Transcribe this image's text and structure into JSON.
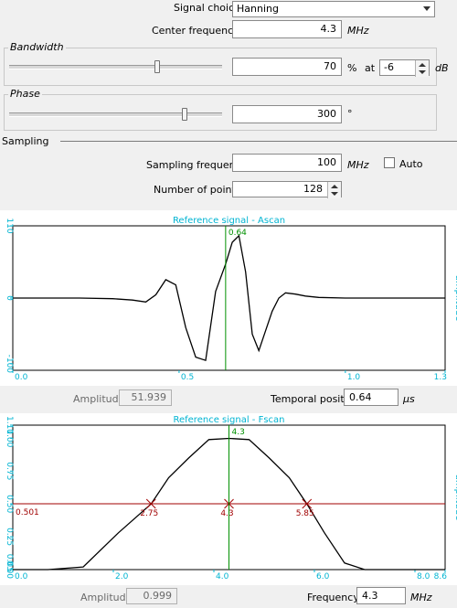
{
  "signal": {
    "choice_label": "Signal choice",
    "choice_value": "Hanning",
    "center_freq_label": "Center frequency",
    "center_freq_value": "4.3",
    "center_freq_unit": "MHz"
  },
  "bandwidth": {
    "title": "Bandwidth",
    "value": "70",
    "unit": "%",
    "at_label": "at",
    "at_value": "-6",
    "at_unit": "dB",
    "slider_level_pct": 70
  },
  "phase": {
    "title": "Phase",
    "value": "300",
    "unit": "°",
    "slider_level_deg": 300
  },
  "sampling": {
    "title": "Sampling",
    "freq_label": "Sampling frequency",
    "freq_value": "100",
    "freq_unit": "MHz",
    "auto_label": "Auto",
    "auto_checked": false,
    "points_label": "Number of points",
    "points_value": "128"
  },
  "ascan_readout": {
    "amplitude_label": "Amplitude",
    "amplitude_value": "51.939",
    "temporal_label": "Temporal position",
    "temporal_value": "0.64",
    "temporal_unit": "µs"
  },
  "fscan_readout": {
    "amplitude_label": "Amplitude",
    "amplitude_value": "0.999",
    "frequency_label": "Frequency",
    "frequency_value": "4.3",
    "frequency_unit": "MHz"
  },
  "colors": {
    "axis_cyan": "#00b4d2",
    "cursor_green": "#009000",
    "threshold_red": "#a00000",
    "curve": "#000000",
    "plot_bg": "#ffffff"
  },
  "chart_data": [
    {
      "type": "line",
      "title": "Reference signal - Ascan",
      "xlabel": "",
      "ylabel": "amplitude",
      "xlim": [
        0,
        1.3
      ],
      "ylim": [
        -110,
        110
      ],
      "x_ticks": [
        "0.0",
        "0.5",
        "1.0",
        "1.3"
      ],
      "y_ticks": [
        "110",
        "0",
        "-100"
      ],
      "cursor_x": 0.64,
      "cursor_label": "0.64",
      "series": [
        {
          "x": [
            0,
            0.1,
            0.2,
            0.3,
            0.36,
            0.4,
            0.43,
            0.46,
            0.49,
            0.52,
            0.55,
            0.58,
            0.61,
            0.64,
            0.66,
            0.68,
            0.7,
            0.72,
            0.74,
            0.76,
            0.78,
            0.8,
            0.82,
            0.85,
            0.88,
            0.92,
            1.0,
            1.1,
            1.2,
            1.3
          ],
          "y": [
            0,
            0,
            0,
            -1,
            -3,
            -6,
            5,
            28,
            20,
            -45,
            -90,
            -95,
            10,
            52,
            85,
            95,
            40,
            -55,
            -80,
            -50,
            -20,
            0,
            8,
            6,
            3,
            1,
            0,
            0,
            0,
            0
          ]
        }
      ]
    },
    {
      "type": "line",
      "title": "Reference signal - Fscan",
      "xlabel": "",
      "ylabel": "amplitude",
      "xlim": [
        0,
        8.6
      ],
      "ylim": [
        0,
        1.1
      ],
      "x_ticks": [
        "0.0",
        "2.0",
        "4.0",
        "6.0",
        "8.0",
        "8.6"
      ],
      "y_ticks": [
        "1.10",
        "1.00",
        "0.75",
        "0.50",
        "0.25",
        "0.05",
        "0.00"
      ],
      "cursor_x": 4.3,
      "cursor_label": "4.3",
      "threshold_y": 0.501,
      "threshold_label": "0.501",
      "markers": [
        {
          "x": 2.75,
          "label": "2.75"
        },
        {
          "x": 4.3,
          "label": "4.3"
        },
        {
          "x": 5.85,
          "label": "5.85"
        }
      ],
      "series": [
        {
          "x": [
            0,
            0.7,
            1.4,
            2.1,
            2.75,
            3.1,
            3.5,
            3.9,
            4.3,
            4.7,
            5.1,
            5.5,
            5.85,
            6.2,
            6.6,
            7.0,
            7.5,
            8.0,
            8.6
          ],
          "y": [
            0,
            0,
            0.02,
            0.28,
            0.5,
            0.7,
            0.85,
            0.99,
            0.999,
            0.99,
            0.85,
            0.7,
            0.5,
            0.28,
            0.05,
            0,
            0,
            0,
            0
          ]
        }
      ]
    }
  ]
}
